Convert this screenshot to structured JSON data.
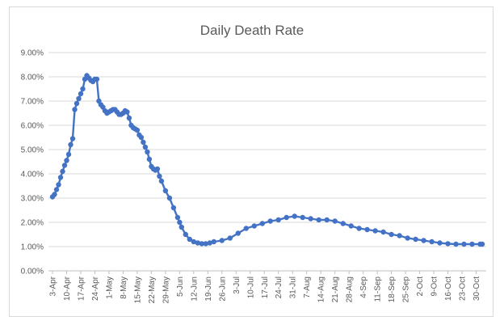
{
  "chart_data": {
    "type": "line",
    "title": "Daily Death Rate",
    "xlabel": "",
    "ylabel": "",
    "ylim": [
      0,
      9
    ],
    "y_ticks": [
      "0.00%",
      "1.00%",
      "2.00%",
      "3.00%",
      "4.00%",
      "5.00%",
      "6.00%",
      "7.00%",
      "8.00%",
      "9.00%"
    ],
    "x_ticks": [
      "3-Apr",
      "10-Apr",
      "17-Apr",
      "24-Apr",
      "1-May",
      "8-May",
      "15-May",
      "22-May",
      "29-May",
      "5-Jun",
      "12-Jun",
      "19-Jun",
      "26-Jun",
      "3-Jul",
      "10-Jul",
      "17-Jul",
      "24-Jul",
      "31-Jul",
      "7-Aug",
      "14-Aug",
      "21-Aug",
      "28-Aug",
      "4-Sep",
      "11-Sep",
      "18-Sep",
      "25-Sep",
      "2-Oct",
      "9-Oct",
      "16-Oct",
      "23-Oct",
      "30-Oct"
    ],
    "series": [
      {
        "name": "Daily Death Rate",
        "color": "#4472c4",
        "day_index": [
          0,
          1,
          2,
          3,
          4,
          5,
          6,
          7,
          8,
          9,
          10,
          11,
          12,
          13,
          14,
          15,
          16,
          17,
          18,
          19,
          20,
          21,
          22,
          23,
          24,
          25,
          26,
          27,
          28,
          29,
          30,
          31,
          32,
          33,
          34,
          35,
          36,
          37,
          38,
          39,
          40,
          41,
          42,
          43,
          44,
          45,
          46,
          47,
          48,
          49,
          50,
          51,
          52,
          53,
          54,
          56,
          58,
          60,
          62,
          63,
          64,
          66,
          68,
          70,
          72,
          74,
          76,
          78,
          80,
          84,
          88,
          92,
          96,
          100,
          104,
          108,
          112,
          116,
          120,
          124,
          128,
          132,
          136,
          140,
          144,
          148,
          152,
          156,
          160,
          164,
          168,
          172,
          176,
          180,
          184,
          188,
          192,
          196,
          200,
          204,
          208,
          212,
          213
        ],
        "values": [
          3.05,
          3.15,
          3.35,
          3.55,
          3.85,
          4.1,
          4.35,
          4.55,
          4.8,
          5.2,
          5.45,
          6.65,
          6.9,
          7.1,
          7.3,
          7.5,
          7.9,
          8.05,
          7.95,
          7.85,
          7.8,
          7.9,
          7.9,
          7.0,
          6.85,
          6.75,
          6.6,
          6.5,
          6.55,
          6.6,
          6.65,
          6.65,
          6.55,
          6.45,
          6.45,
          6.5,
          6.6,
          6.55,
          6.3,
          6.0,
          5.9,
          5.85,
          5.8,
          5.6,
          5.5,
          5.3,
          5.1,
          4.9,
          4.6,
          4.3,
          4.2,
          4.15,
          4.2,
          3.9,
          3.7,
          3.3,
          3.0,
          2.6,
          2.2,
          2.0,
          1.8,
          1.5,
          1.3,
          1.2,
          1.15,
          1.12,
          1.12,
          1.15,
          1.2,
          1.25,
          1.35,
          1.55,
          1.75,
          1.85,
          1.95,
          2.05,
          2.1,
          2.2,
          2.25,
          2.2,
          2.15,
          2.1,
          2.1,
          2.05,
          1.95,
          1.85,
          1.75,
          1.7,
          1.65,
          1.6,
          1.5,
          1.45,
          1.35,
          1.3,
          1.25,
          1.2,
          1.15,
          1.12,
          1.1,
          1.1,
          1.1,
          1.1,
          1.1
        ]
      }
    ]
  }
}
